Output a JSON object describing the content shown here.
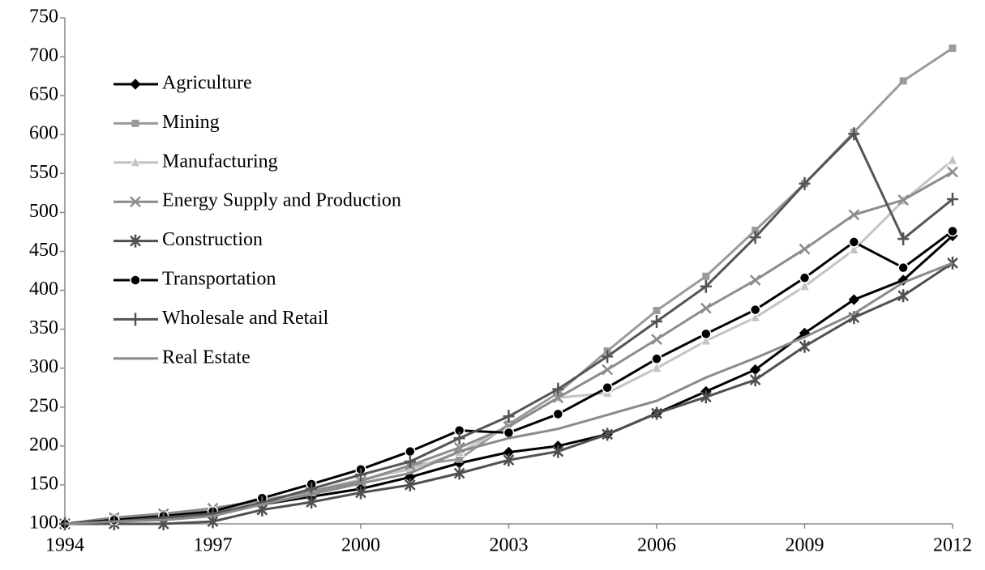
{
  "chart_data": {
    "type": "line",
    "x": [
      1994,
      1995,
      1996,
      1997,
      1998,
      1999,
      2000,
      2001,
      2002,
      2003,
      2004,
      2005,
      2006,
      2007,
      2008,
      2009,
      2010,
      2011,
      2012
    ],
    "xlim": [
      1994,
      2012
    ],
    "xticks": [
      1994,
      1997,
      2000,
      2003,
      2006,
      2009,
      2012
    ],
    "ylim": [
      100,
      750
    ],
    "yticks": [
      100,
      150,
      200,
      250,
      300,
      350,
      400,
      450,
      500,
      550,
      600,
      650,
      700,
      750
    ],
    "grid": false,
    "legend": "upper left",
    "series": [
      {
        "name": "Agriculture",
        "color": "#000000",
        "marker": "diamond",
        "values": [
          100,
          103,
          108,
          113,
          125,
          135,
          145,
          160,
          178,
          192,
          200,
          215,
          242,
          270,
          298,
          345,
          388,
          413,
          470
        ]
      },
      {
        "name": "Mining",
        "color": "#9a9a9a",
        "marker": "square",
        "values": [
          100,
          108,
          113,
          118,
          127,
          140,
          155,
          175,
          183,
          228,
          268,
          322,
          374,
          418,
          477,
          537,
          603,
          669,
          711
        ]
      },
      {
        "name": "Manufacturing",
        "color": "#c4c4c4",
        "marker": "triangle",
        "values": [
          100,
          105,
          110,
          116,
          128,
          142,
          157,
          170,
          192,
          225,
          262,
          268,
          300,
          335,
          365,
          405,
          452,
          515,
          567
        ]
      },
      {
        "name": "Energy Supply and Production",
        "color": "#8c8c8c",
        "marker": "x",
        "values": [
          100,
          108,
          113,
          120,
          130,
          142,
          155,
          175,
          198,
          225,
          262,
          298,
          337,
          377,
          413,
          453,
          497,
          516,
          552
        ]
      },
      {
        "name": "Construction",
        "color": "#505050",
        "marker": "asterisk",
        "values": [
          100,
          100,
          100,
          103,
          118,
          128,
          140,
          150,
          165,
          182,
          193,
          215,
          242,
          263,
          285,
          328,
          365,
          393,
          435
        ]
      },
      {
        "name": "Transportation",
        "color": "#000000",
        "marker": "circle",
        "values": [
          100,
          105,
          110,
          116,
          133,
          151,
          170,
          193,
          220,
          217,
          241,
          275,
          312,
          344,
          375,
          416,
          462,
          429,
          476
        ]
      },
      {
        "name": "Wholesale and Retail",
        "color": "#555555",
        "marker": "plus",
        "values": [
          100,
          103,
          108,
          113,
          127,
          145,
          163,
          180,
          210,
          238,
          273,
          315,
          360,
          405,
          468,
          537,
          601,
          466,
          517
        ]
      },
      {
        "name": "Real Estate",
        "color": "#8a8a8a",
        "marker": "none",
        "values": [
          100,
          103,
          105,
          110,
          125,
          138,
          152,
          165,
          193,
          210,
          222,
          240,
          258,
          288,
          313,
          340,
          370,
          410,
          435
        ]
      }
    ]
  }
}
